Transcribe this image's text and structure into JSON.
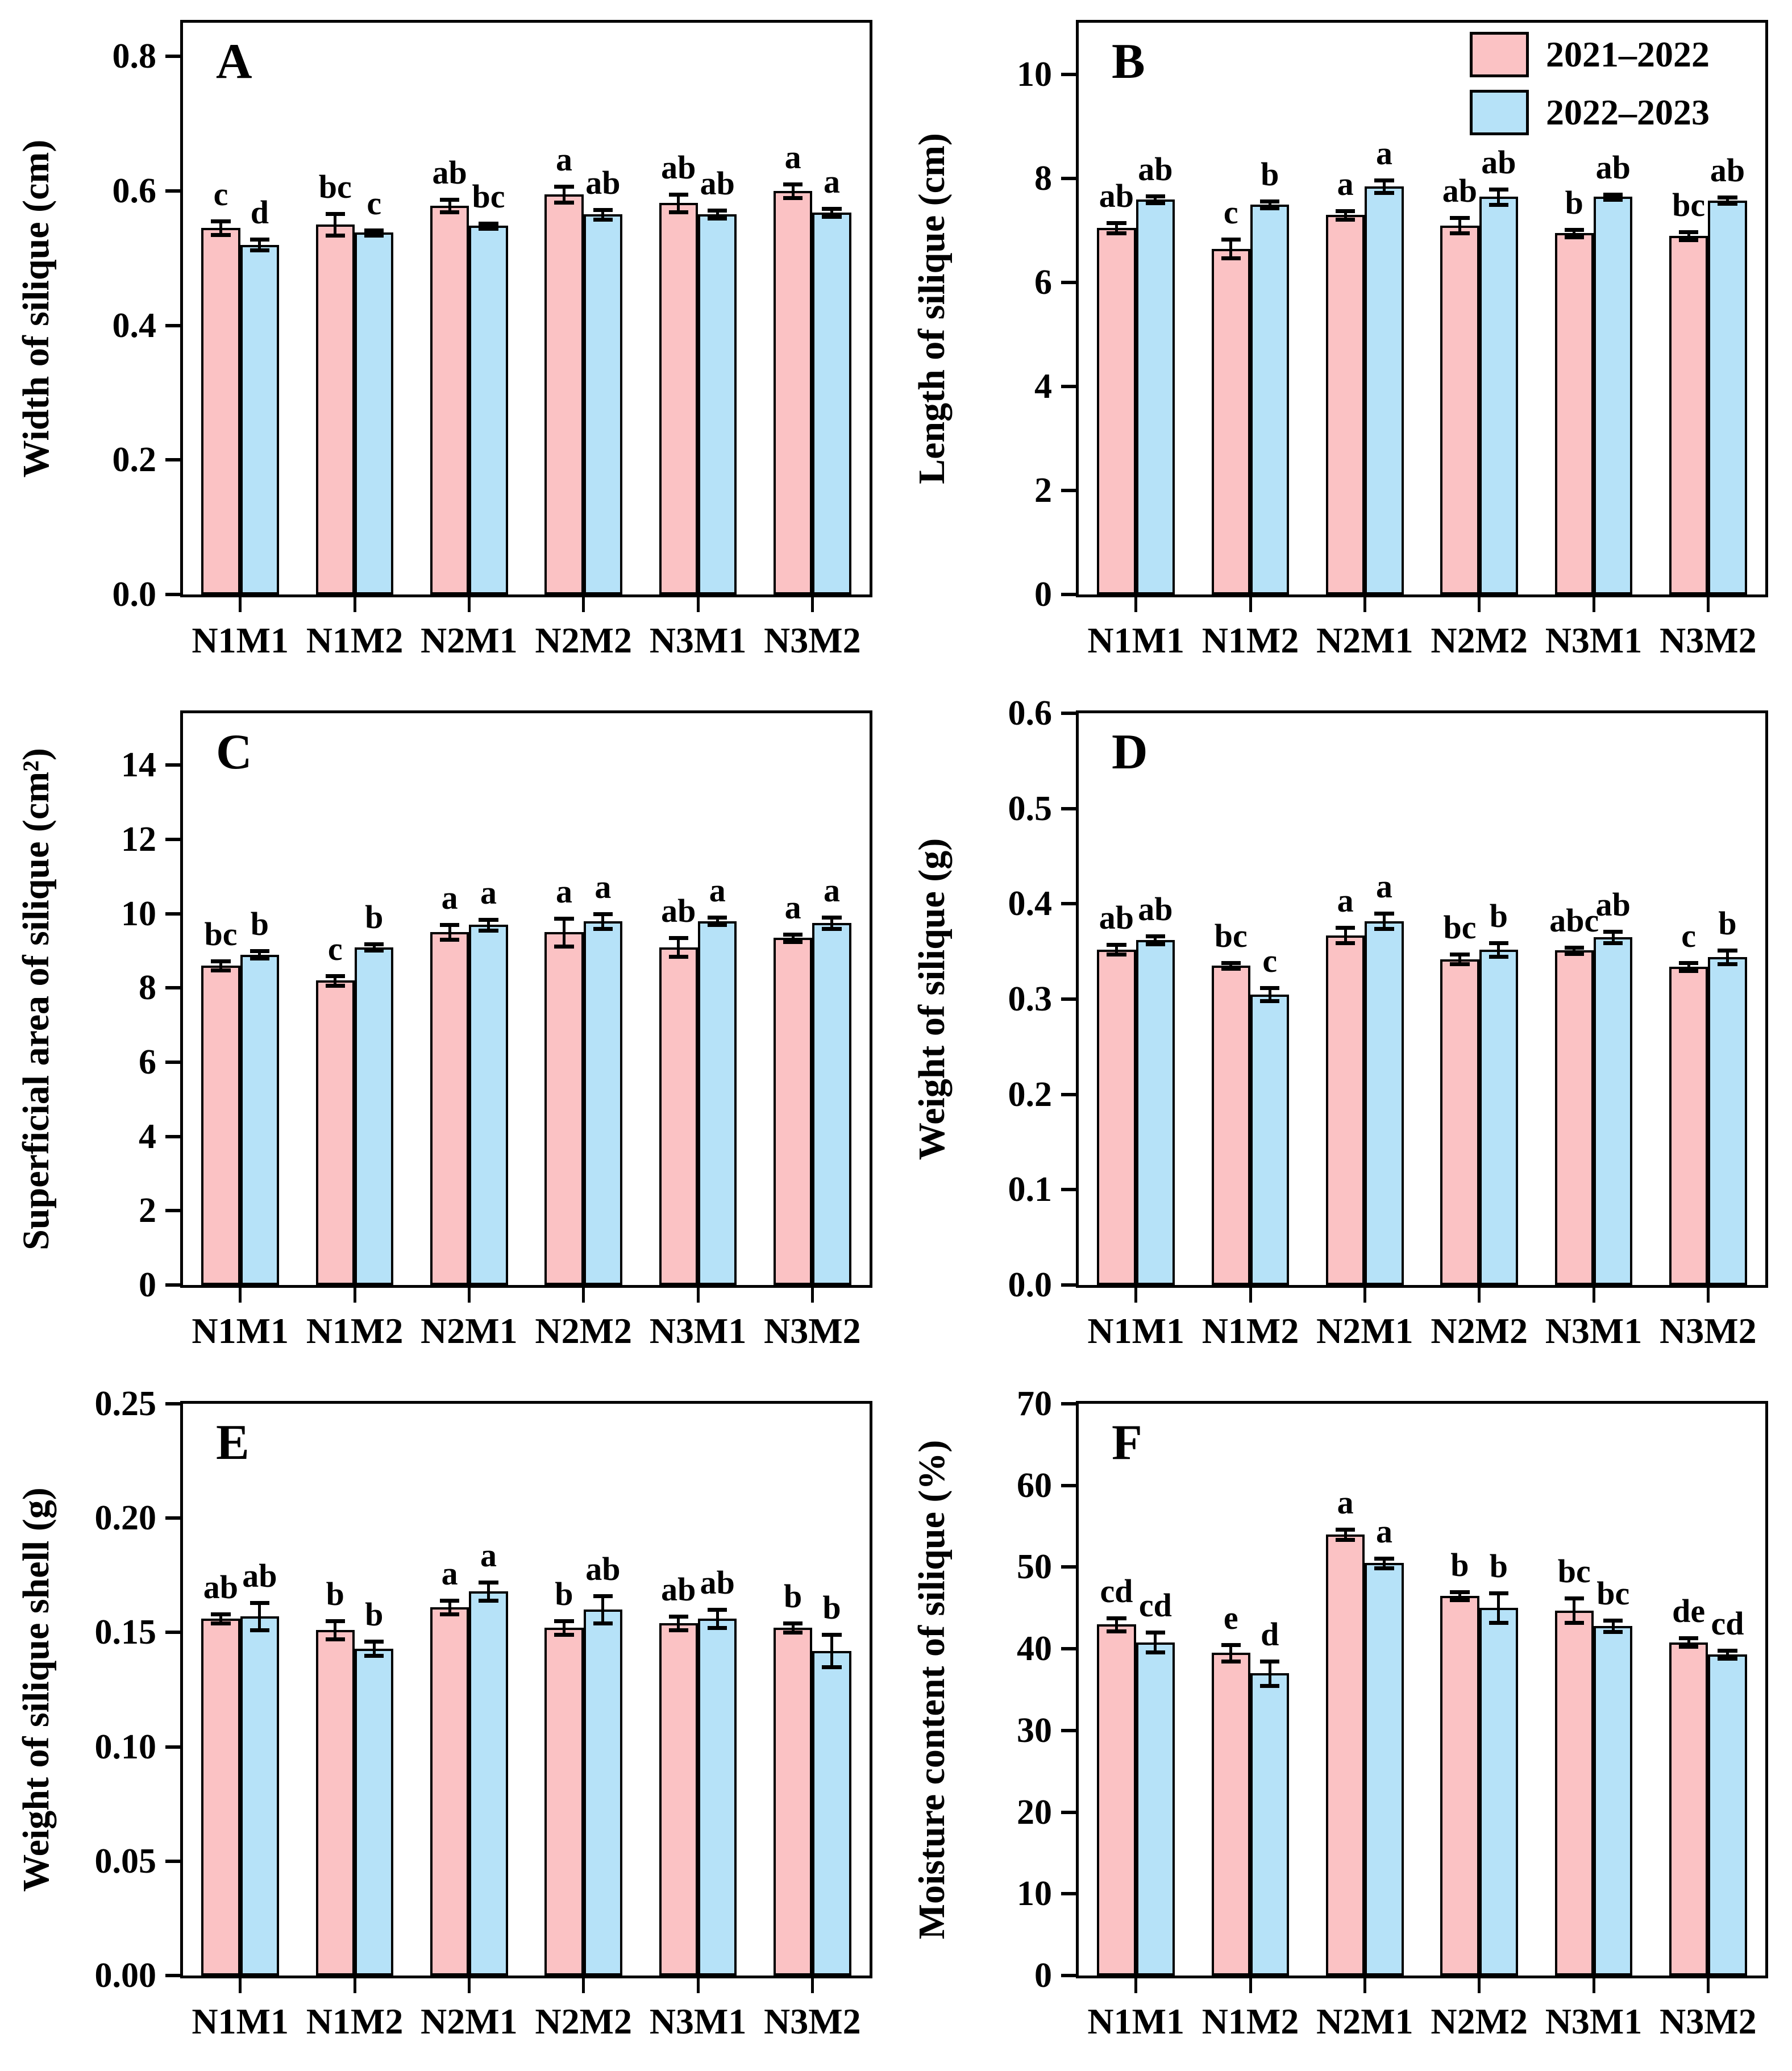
{
  "figure_title": "",
  "categories": [
    "N1M1",
    "N1M2",
    "N2M1",
    "N2M2",
    "N3M1",
    "N3M2"
  ],
  "legend": {
    "panel": "B",
    "items": [
      {
        "label": "2021–2022",
        "color": "#FBC2C4"
      },
      {
        "label": "2022–2023",
        "color": "#B6E2F8"
      }
    ]
  },
  "colors": {
    "series1": "#FBC2C4",
    "series2": "#B6E2F8",
    "edge": "#000000"
  },
  "chart_data": [
    {
      "panel": "A",
      "type": "bar",
      "ylabel": "Width of silique (cm)",
      "ylim": [
        0,
        0.85
      ],
      "ytick_values": [
        0.0,
        0.2,
        0.4,
        0.6,
        0.8
      ],
      "ytick_labels": [
        "0.0",
        "0.2",
        "0.4",
        "0.6",
        "0.8"
      ],
      "series": [
        {
          "name": "2021–2022",
          "values": [
            0.545,
            0.55,
            0.578,
            0.595,
            0.582,
            0.6
          ],
          "errors": [
            0.01,
            0.016,
            0.009,
            0.012,
            0.013,
            0.01
          ],
          "letters": [
            "c",
            "bc",
            "ab",
            "a",
            "ab",
            "a"
          ]
        },
        {
          "name": "2022–2023",
          "values": [
            0.52,
            0.538,
            0.548,
            0.565,
            0.565,
            0.568
          ],
          "errors": [
            0.008,
            0.004,
            0.004,
            0.007,
            0.006,
            0.006
          ],
          "letters": [
            "d",
            "c",
            "bc",
            "ab",
            "ab",
            "a"
          ]
        }
      ]
    },
    {
      "panel": "B",
      "type": "bar",
      "ylabel": "Length of silique (cm)",
      "ylim": [
        0,
        11
      ],
      "ytick_values": [
        0,
        2,
        4,
        6,
        8,
        10
      ],
      "ytick_labels": [
        "0",
        "2",
        "4",
        "6",
        "8",
        "10"
      ],
      "series": [
        {
          "name": "2021–2022",
          "values": [
            7.05,
            6.65,
            7.3,
            7.1,
            6.95,
            6.9
          ],
          "errors": [
            0.1,
            0.18,
            0.08,
            0.15,
            0.07,
            0.08
          ],
          "letters": [
            "ab",
            "c",
            "a",
            "ab",
            "b",
            "bc"
          ]
        },
        {
          "name": "2022–2023",
          "values": [
            7.6,
            7.5,
            7.85,
            7.65,
            7.65,
            7.58
          ],
          "errors": [
            0.07,
            0.07,
            0.12,
            0.15,
            0.05,
            0.06
          ],
          "letters": [
            "ab",
            "b",
            "a",
            "ab",
            "ab",
            "ab"
          ]
        }
      ]
    },
    {
      "panel": "C",
      "type": "bar",
      "ylabel": "Superficial area of silique (cm²)",
      "ylim": [
        0,
        15.4
      ],
      "ytick_values": [
        0,
        2,
        4,
        6,
        8,
        10,
        12,
        14
      ],
      "ytick_labels": [
        "0",
        "2",
        "4",
        "6",
        "8",
        "10",
        "12",
        "14"
      ],
      "series": [
        {
          "name": "2021–2022",
          "values": [
            8.6,
            8.2,
            9.5,
            9.5,
            9.1,
            9.35
          ],
          "errors": [
            0.12,
            0.13,
            0.2,
            0.38,
            0.25,
            0.1
          ],
          "letters": [
            "bc",
            "c",
            "a",
            "a",
            "ab",
            "a"
          ]
        },
        {
          "name": "2022–2023",
          "values": [
            8.9,
            9.1,
            9.7,
            9.8,
            9.8,
            9.75
          ],
          "errors": [
            0.1,
            0.08,
            0.15,
            0.2,
            0.1,
            0.15
          ],
          "letters": [
            "b",
            "b",
            "a",
            "a",
            "a",
            "a"
          ]
        }
      ]
    },
    {
      "panel": "D",
      "type": "bar",
      "ylabel": "Weight of silique (g)",
      "ylim": [
        0,
        0.6
      ],
      "ytick_values": [
        0.0,
        0.1,
        0.2,
        0.3,
        0.4,
        0.5,
        0.6
      ],
      "ytick_labels": [
        "0.0",
        "0.1",
        "0.2",
        "0.3",
        "0.4",
        "0.5",
        "0.6"
      ],
      "series": [
        {
          "name": "2021–2022",
          "values": [
            0.352,
            0.335,
            0.367,
            0.342,
            0.351,
            0.334
          ],
          "errors": [
            0.005,
            0.003,
            0.008,
            0.005,
            0.003,
            0.004
          ],
          "letters": [
            "ab",
            "bc",
            "a",
            "bc",
            "abc",
            "c"
          ]
        },
        {
          "name": "2022–2023",
          "values": [
            0.362,
            0.305,
            0.382,
            0.352,
            0.365,
            0.344
          ],
          "errors": [
            0.004,
            0.007,
            0.008,
            0.007,
            0.006,
            0.007
          ],
          "letters": [
            "ab",
            "c",
            "a",
            "b",
            "ab",
            "b"
          ]
        }
      ]
    },
    {
      "panel": "E",
      "type": "bar",
      "ylabel": "Weight of silique shell (g)",
      "ylim": [
        0,
        0.25
      ],
      "ytick_values": [
        0.0,
        0.05,
        0.1,
        0.15,
        0.2,
        0.25
      ],
      "ytick_labels": [
        "0.00",
        "0.05",
        "0.10",
        "0.15",
        "0.20",
        "0.25"
      ],
      "series": [
        {
          "name": "2021–2022",
          "values": [
            0.156,
            0.151,
            0.161,
            0.152,
            0.154,
            0.152
          ],
          "errors": [
            0.002,
            0.004,
            0.003,
            0.003,
            0.003,
            0.002
          ],
          "letters": [
            "ab",
            "b",
            "a",
            "b",
            "ab",
            "b"
          ]
        },
        {
          "name": "2022–2023",
          "values": [
            0.157,
            0.143,
            0.168,
            0.16,
            0.156,
            0.142
          ],
          "errors": [
            0.006,
            0.003,
            0.004,
            0.006,
            0.004,
            0.007
          ],
          "letters": [
            "ab",
            "b",
            "a",
            "ab",
            "ab",
            "b"
          ]
        }
      ]
    },
    {
      "panel": "F",
      "type": "bar",
      "ylabel": "Moisture content of silique (%)",
      "ylim": [
        0,
        70
      ],
      "ytick_values": [
        0,
        10,
        20,
        30,
        40,
        50,
        60,
        70
      ],
      "ytick_labels": [
        "0",
        "10",
        "20",
        "30",
        "40",
        "50",
        "60",
        "70"
      ],
      "series": [
        {
          "name": "2021–2022",
          "values": [
            43.0,
            39.5,
            54.0,
            46.5,
            44.7,
            40.8
          ],
          "errors": [
            0.8,
            1.0,
            0.6,
            0.5,
            1.5,
            0.5
          ],
          "letters": [
            "cd",
            "e",
            "a",
            "b",
            "bc",
            "de"
          ]
        },
        {
          "name": "2022–2023",
          "values": [
            40.8,
            37.0,
            50.5,
            45.0,
            42.8,
            39.3
          ],
          "errors": [
            1.2,
            1.5,
            0.6,
            1.8,
            0.7,
            0.5
          ],
          "letters": [
            "cd",
            "d",
            "a",
            "b",
            "bc",
            "cd"
          ]
        }
      ]
    }
  ]
}
